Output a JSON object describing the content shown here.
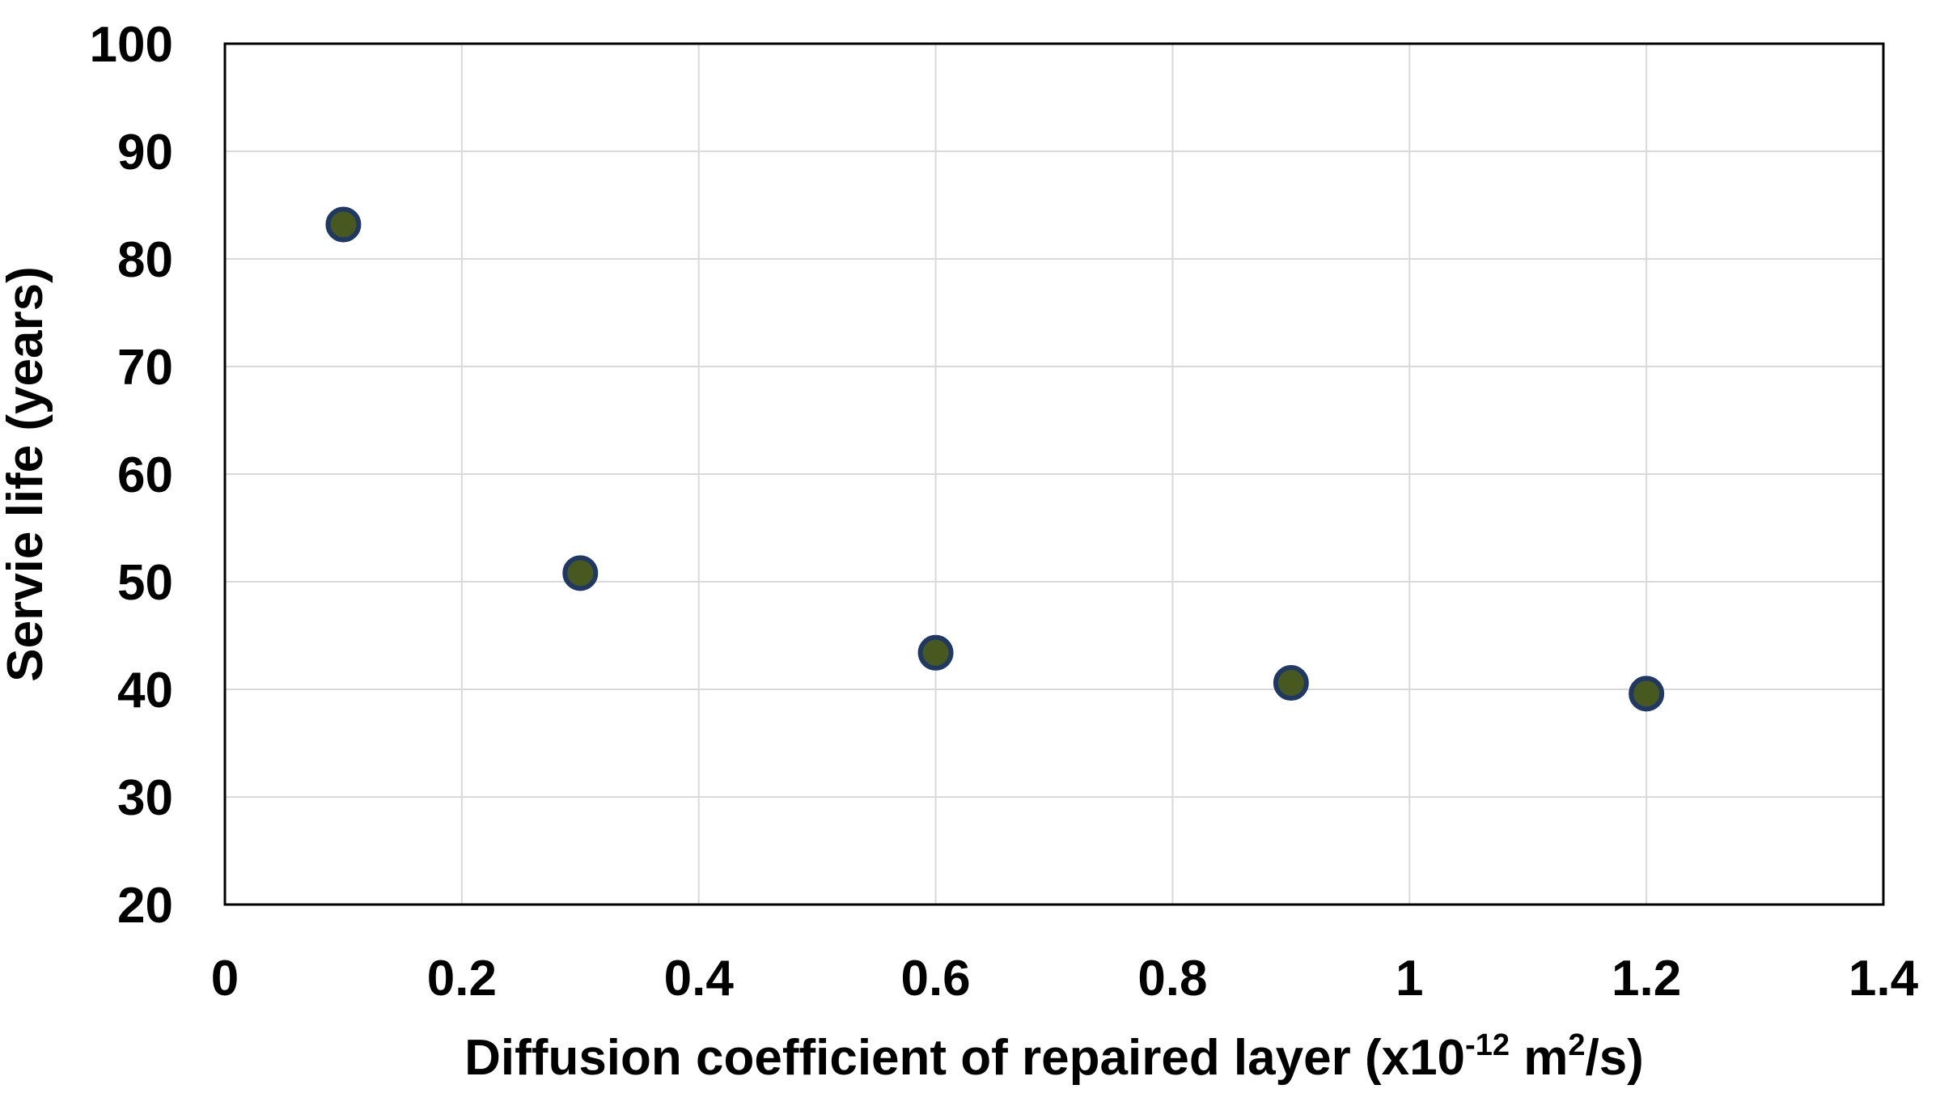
{
  "chart_data": {
    "type": "scatter",
    "title": "",
    "ylabel": "Servie life (years)",
    "xlabel_segments": [
      {
        "text": "Diffusion coefficient of repaired layer (x10",
        "style": "normal"
      },
      {
        "text": "-12",
        "style": "super"
      },
      {
        "text": " m",
        "style": "normal"
      },
      {
        "text": "2",
        "style": "super"
      },
      {
        "text": "/s)",
        "style": "normal"
      }
    ],
    "x": [
      0.1,
      0.3,
      0.6,
      0.9,
      1.2
    ],
    "y": [
      83.2,
      50.8,
      43.4,
      40.6,
      39.6
    ],
    "xlim": [
      0,
      1.4
    ],
    "ylim": [
      20,
      100
    ],
    "xticks": [
      0,
      0.2,
      0.4,
      0.6,
      0.8,
      1,
      1.2,
      1.4
    ],
    "xtick_labels": [
      "0",
      "0.2",
      "0.4",
      "0.6",
      "0.8",
      "1",
      "1.2",
      "1.4"
    ],
    "yticks": [
      20,
      30,
      40,
      50,
      60,
      70,
      80,
      90,
      100
    ],
    "ytick_labels": [
      "20",
      "30",
      "40",
      "50",
      "60",
      "70",
      "80",
      "90",
      "100"
    ],
    "grid": true,
    "legend": "none",
    "marker": {
      "shape": "circle",
      "radius_px": 19,
      "stroke_width_px": 6
    },
    "colors": {
      "marker_fill": "#48591F",
      "marker_stroke": "#1F3864",
      "gridline": "#D9D9D9",
      "axis_border": "#000000",
      "text": "#000000",
      "background": "#FFFFFF"
    }
  }
}
